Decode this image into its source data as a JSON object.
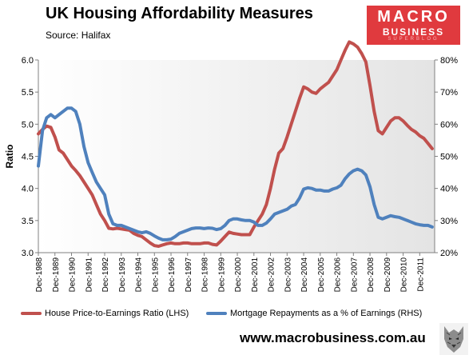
{
  "header": {
    "title": "UK Housing  Affordability  Measures",
    "subtitle": "Source:  Halifax"
  },
  "logo": {
    "line1": "MACRO",
    "line2": "BUSINESS",
    "line3": "SUPERBLOG"
  },
  "footer": {
    "website": "www.macrobusiness.com.au"
  },
  "colors": {
    "red_series": "#c0504d",
    "blue_series": "#4f81bd",
    "logo_bg": "#e03a3e"
  },
  "chart_data": {
    "type": "line",
    "title": "UK Housing  Affordability  Measures",
    "ylabel_left": "Ratio",
    "ylim_left": [
      3.0,
      6.0
    ],
    "yticks_left": [
      "3.0",
      "3.5",
      "4.0",
      "4.5",
      "5.0",
      "5.5",
      "6.0"
    ],
    "ylim_right": [
      20,
      80
    ],
    "yticks_right": [
      "20%",
      "30%",
      "40%",
      "50%",
      "60%",
      "70%",
      "80%"
    ],
    "xlim": [
      1988,
      2011.9
    ],
    "xticks": [
      "Dec-1988",
      "Dec-1989",
      "Dec-1990",
      "Dec-1991",
      "Dec-1992",
      "Dec-1993",
      "Dec-1994",
      "Dec-1995",
      "Dec-1996",
      "Dec-1997",
      "Dec-1998",
      "Dec-1999",
      "Dec-2000",
      "Dec-2001",
      "Dec-2002",
      "Dec-2003",
      "Dec-2004",
      "Dec-2005",
      "Dec-2006",
      "Dec-2007",
      "Dec-2008",
      "Dec-2009",
      "Dec-2010",
      "Dec-2011"
    ],
    "grid": false,
    "legend_position": "bottom",
    "series": [
      {
        "name": "House Price-to-Earnings Ratio (LHS)",
        "axis": "left",
        "x": [
          1988.0,
          1988.25,
          1988.5,
          1988.75,
          1989.0,
          1989.25,
          1989.5,
          1989.75,
          1990.0,
          1990.25,
          1990.5,
          1990.75,
          1991.0,
          1991.25,
          1991.5,
          1991.75,
          1992.0,
          1992.25,
          1992.5,
          1992.75,
          1993.0,
          1993.25,
          1993.5,
          1993.75,
          1994.0,
          1994.25,
          1994.5,
          1994.75,
          1995.0,
          1995.25,
          1995.5,
          1995.75,
          1996.0,
          1996.25,
          1996.5,
          1996.75,
          1997.0,
          1997.25,
          1997.5,
          1997.75,
          1998.0,
          1998.25,
          1998.5,
          1998.75,
          1999.0,
          1999.25,
          1999.5,
          1999.75,
          2000.0,
          2000.25,
          2000.5,
          2000.75,
          2001.0,
          2001.25,
          2001.5,
          2001.75,
          2002.0,
          2002.25,
          2002.5,
          2002.75,
          2003.0,
          2003.25,
          2003.5,
          2003.75,
          2004.0,
          2004.25,
          2004.5,
          2004.75,
          2005.0,
          2005.25,
          2005.5,
          2005.75,
          2006.0,
          2006.25,
          2006.5,
          2006.75,
          2007.0,
          2007.25,
          2007.5,
          2007.75,
          2008.0,
          2008.25,
          2008.5,
          2008.75,
          2009.0,
          2009.25,
          2009.5,
          2009.75,
          2010.0,
          2010.25,
          2010.5,
          2010.75,
          2011.0,
          2011.25,
          2011.5,
          2011.75
        ],
        "values": [
          4.85,
          4.92,
          4.97,
          4.95,
          4.8,
          4.6,
          4.55,
          4.45,
          4.35,
          4.28,
          4.2,
          4.1,
          4.0,
          3.9,
          3.75,
          3.6,
          3.5,
          3.38,
          3.37,
          3.38,
          3.37,
          3.36,
          3.35,
          3.3,
          3.27,
          3.25,
          3.2,
          3.15,
          3.11,
          3.1,
          3.12,
          3.14,
          3.15,
          3.14,
          3.14,
          3.15,
          3.15,
          3.14,
          3.14,
          3.14,
          3.15,
          3.15,
          3.13,
          3.12,
          3.18,
          3.25,
          3.32,
          3.3,
          3.29,
          3.28,
          3.28,
          3.28,
          3.4,
          3.5,
          3.6,
          3.75,
          4.0,
          4.3,
          4.55,
          4.62,
          4.8,
          5.0,
          5.2,
          5.4,
          5.58,
          5.55,
          5.5,
          5.48,
          5.55,
          5.6,
          5.65,
          5.75,
          5.85,
          6.0,
          6.15,
          6.28,
          6.25,
          6.2,
          6.1,
          5.97,
          5.6,
          5.2,
          4.9,
          4.85,
          4.95,
          5.05,
          5.1,
          5.1,
          5.05,
          4.98,
          4.92,
          4.88,
          4.82,
          4.78,
          4.7,
          4.62
        ]
      },
      {
        "name": "Mortgage Repayments as a % of Earnings (RHS)",
        "axis": "right",
        "x": [
          1988.0,
          1988.25,
          1988.5,
          1988.75,
          1989.0,
          1989.25,
          1989.5,
          1989.75,
          1990.0,
          1990.25,
          1990.5,
          1990.75,
          1991.0,
          1991.25,
          1991.5,
          1991.75,
          1992.0,
          1992.25,
          1992.5,
          1992.75,
          1993.0,
          1993.25,
          1993.5,
          1993.75,
          1994.0,
          1994.25,
          1994.5,
          1994.75,
          1995.0,
          1995.25,
          1995.5,
          1995.75,
          1996.0,
          1996.25,
          1996.5,
          1996.75,
          1997.0,
          1997.25,
          1997.5,
          1997.75,
          1998.0,
          1998.25,
          1998.5,
          1998.75,
          1999.0,
          1999.25,
          1999.5,
          1999.75,
          2000.0,
          2000.25,
          2000.5,
          2000.75,
          2001.0,
          2001.25,
          2001.5,
          2001.75,
          2002.0,
          2002.25,
          2002.5,
          2002.75,
          2003.0,
          2003.25,
          2003.5,
          2003.75,
          2004.0,
          2004.25,
          2004.5,
          2004.75,
          2005.0,
          2005.25,
          2005.5,
          2005.75,
          2006.0,
          2006.25,
          2006.5,
          2006.75,
          2007.0,
          2007.25,
          2007.5,
          2007.75,
          2008.0,
          2008.25,
          2008.5,
          2008.75,
          2009.0,
          2009.25,
          2009.5,
          2009.75,
          2010.0,
          2010.25,
          2010.5,
          2010.75,
          2011.0,
          2011.25,
          2011.5,
          2011.75
        ],
        "values": [
          47,
          58,
          62,
          63,
          62,
          63,
          64,
          65,
          65,
          64,
          60,
          53,
          48,
          45,
          42,
          40,
          38,
          32,
          29,
          28.5,
          28.5,
          28,
          27.5,
          27,
          26.5,
          26.2,
          26.5,
          26,
          25.2,
          24.5,
          24,
          24,
          24.2,
          25,
          26,
          26.5,
          27,
          27.5,
          27.7,
          27.7,
          27.5,
          27.7,
          27.6,
          27.2,
          27.5,
          28.5,
          30,
          30.5,
          30.5,
          30.2,
          30,
          30,
          29.5,
          28.5,
          28.5,
          29.2,
          30.5,
          32,
          32.5,
          33,
          33.5,
          34.5,
          35,
          37,
          39.8,
          40.2,
          40,
          39.5,
          39.5,
          39.2,
          39.2,
          39.8,
          40.2,
          41,
          43,
          44.5,
          45.5,
          46,
          45.5,
          44.2,
          40.5,
          35,
          31,
          30.5,
          31,
          31.5,
          31.2,
          31,
          30.5,
          30,
          29.5,
          29,
          28.7,
          28.5,
          28.5,
          28
        ]
      }
    ]
  }
}
